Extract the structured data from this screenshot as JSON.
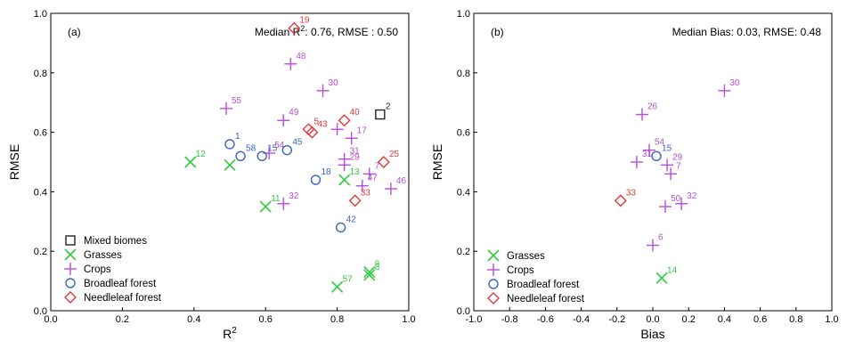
{
  "chart_data": [
    {
      "type": "scatter",
      "panel_label": "(a)",
      "xlabel": "R",
      "xlabel_sup": "2",
      "ylabel": "RMSE",
      "xlim": [
        0,
        1
      ],
      "ylim": [
        0,
        1
      ],
      "xticks": [
        "0.0",
        "0.2",
        "0.4",
        "0.6",
        "0.8",
        "1.0"
      ],
      "yticks": [
        "0.0",
        "0.2",
        "0.4",
        "0.6",
        "0.8",
        "1.0"
      ],
      "annotation_prefix": "Median R",
      "annotation_sup": "2",
      "annotation_rest": ": 0.76, RMSE :  0.50",
      "legend_position": "bottom-left",
      "grid": false,
      "series": [
        {
          "name": "Mixed biomes",
          "marker": "square",
          "color": "#222222",
          "points": [
            {
              "x": 0.92,
              "y": 0.66,
              "label": "2"
            }
          ]
        },
        {
          "name": "Grasses",
          "marker": "x",
          "color": "#2ecc40",
          "points": [
            {
              "x": 0.39,
              "y": 0.5,
              "label": "12"
            },
            {
              "x": 0.5,
              "y": 0.49,
              "label": ""
            },
            {
              "x": 0.6,
              "y": 0.35,
              "label": "11"
            },
            {
              "x": 0.82,
              "y": 0.44,
              "label": "13"
            },
            {
              "x": 0.8,
              "y": 0.08,
              "label": "57"
            },
            {
              "x": 0.89,
              "y": 0.12,
              "label": "8"
            },
            {
              "x": 0.89,
              "y": 0.13,
              "label": "9"
            }
          ]
        },
        {
          "name": "Crops",
          "marker": "plus",
          "color": "#b44fd6",
          "points": [
            {
              "x": 0.49,
              "y": 0.68,
              "label": "55"
            },
            {
              "x": 0.67,
              "y": 0.83,
              "label": "48"
            },
            {
              "x": 0.76,
              "y": 0.74,
              "label": "30"
            },
            {
              "x": 0.65,
              "y": 0.64,
              "label": "49"
            },
            {
              "x": 0.61,
              "y": 0.53,
              "label": "54"
            },
            {
              "x": 0.8,
              "y": 0.61,
              "label": ""
            },
            {
              "x": 0.84,
              "y": 0.58,
              "label": "17"
            },
            {
              "x": 0.82,
              "y": 0.51,
              "label": "31"
            },
            {
              "x": 0.82,
              "y": 0.49,
              "label": "29"
            },
            {
              "x": 0.89,
              "y": 0.46,
              "label": "7"
            },
            {
              "x": 0.87,
              "y": 0.42,
              "label": "47"
            },
            {
              "x": 0.95,
              "y": 0.41,
              "label": "46"
            },
            {
              "x": 0.65,
              "y": 0.36,
              "label": "32"
            }
          ]
        },
        {
          "name": "Broadleaf forest",
          "marker": "circle",
          "color": "#3a62c4",
          "points": [
            {
              "x": 0.5,
              "y": 0.56,
              "label": "1"
            },
            {
              "x": 0.53,
              "y": 0.52,
              "label": "58"
            },
            {
              "x": 0.59,
              "y": 0.52,
              "label": "15"
            },
            {
              "x": 0.66,
              "y": 0.54,
              "label": "45"
            },
            {
              "x": 0.74,
              "y": 0.44,
              "label": "18"
            },
            {
              "x": 0.81,
              "y": 0.28,
              "label": "42"
            }
          ]
        },
        {
          "name": "Needleleaf forest",
          "marker": "diamond",
          "color": "#e03b3b",
          "points": [
            {
              "x": 0.68,
              "y": 0.95,
              "label": "19"
            },
            {
              "x": 0.72,
              "y": 0.61,
              "label": "5"
            },
            {
              "x": 0.73,
              "y": 0.6,
              "label": "43"
            },
            {
              "x": 0.82,
              "y": 0.64,
              "label": "40"
            },
            {
              "x": 0.93,
              "y": 0.5,
              "label": "25"
            },
            {
              "x": 0.85,
              "y": 0.37,
              "label": "33"
            }
          ]
        }
      ]
    },
    {
      "type": "scatter",
      "panel_label": "(b)",
      "xlabel": "Bias",
      "ylabel": "RMSE",
      "xlim": [
        -1,
        1
      ],
      "ylim": [
        0,
        1
      ],
      "xticks": [
        "-1.0",
        "-0.8",
        "-0.6",
        "-0.4",
        "-0.2",
        "0.0",
        "0.2",
        "0.4",
        "0.6",
        "0.8",
        "1.0"
      ],
      "yticks": [
        "0.0",
        "0.2",
        "0.4",
        "0.6",
        "0.8",
        "1.0"
      ],
      "annotation": "Median Bias: 0.03, RMSE: 0.48",
      "legend_position": "bottom-left",
      "grid": false,
      "series": [
        {
          "name": "Grasses",
          "marker": "x",
          "color": "#2ecc40",
          "points": [
            {
              "x": 0.05,
              "y": 0.11,
              "label": "14"
            }
          ]
        },
        {
          "name": "Crops",
          "marker": "plus",
          "color": "#b44fd6",
          "points": [
            {
              "x": 0.4,
              "y": 0.74,
              "label": "30"
            },
            {
              "x": -0.06,
              "y": 0.66,
              "label": "26"
            },
            {
              "x": -0.02,
              "y": 0.54,
              "label": "54"
            },
            {
              "x": -0.09,
              "y": 0.5,
              "label": "31"
            },
            {
              "x": 0.08,
              "y": 0.49,
              "label": "29"
            },
            {
              "x": 0.1,
              "y": 0.46,
              "label": "7"
            },
            {
              "x": 0.16,
              "y": 0.36,
              "label": "32"
            },
            {
              "x": 0.07,
              "y": 0.35,
              "label": "50"
            },
            {
              "x": 0.0,
              "y": 0.22,
              "label": "6"
            }
          ]
        },
        {
          "name": "Broadleaf forest",
          "marker": "circle",
          "color": "#3a62c4",
          "points": [
            {
              "x": 0.02,
              "y": 0.52,
              "label": "15"
            }
          ]
        },
        {
          "name": "Needleleaf forest",
          "marker": "diamond",
          "color": "#e03b3b",
          "points": [
            {
              "x": -0.18,
              "y": 0.37,
              "label": "33"
            }
          ]
        }
      ]
    }
  ]
}
